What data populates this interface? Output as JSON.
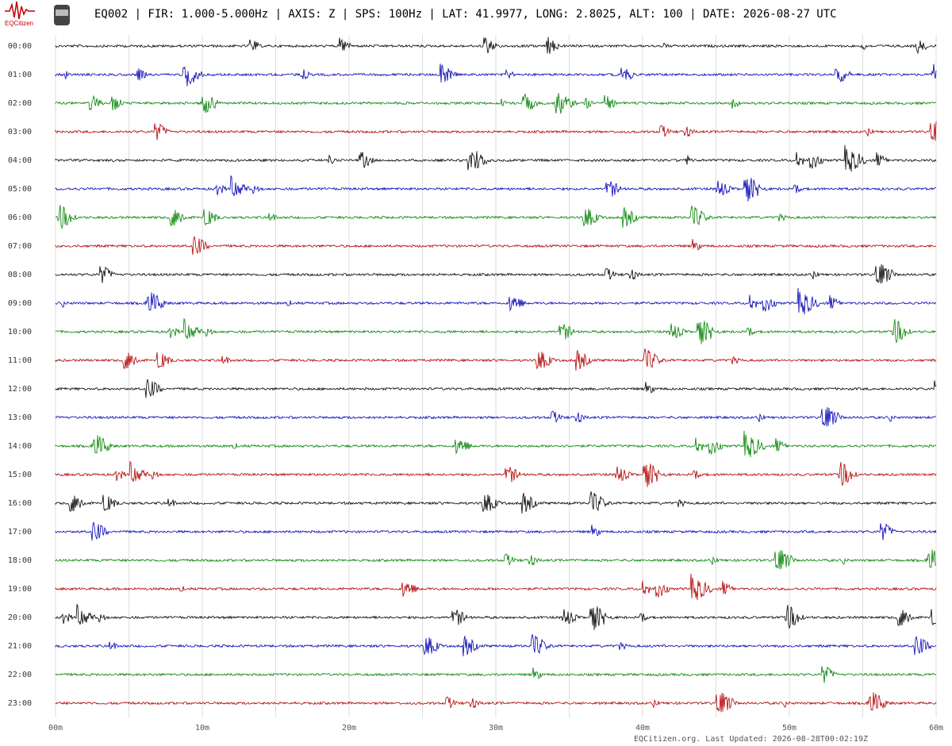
{
  "header": {
    "logo": "EQCitizen",
    "title": "EQ002 | FIR: 1.000-5.000Hz | AXIS: Z | SPS: 100Hz | LAT: 41.9977, LONG: 2.8025, ALT: 100 | DATE: 2026-08-27 UTC"
  },
  "rows": [
    {
      "label": "00:00",
      "color": "#000000"
    },
    {
      "label": "01:00",
      "color": "#0000b4"
    },
    {
      "label": "02:00",
      "color": "#008000"
    },
    {
      "label": "03:00",
      "color": "#b00000"
    },
    {
      "label": "04:00",
      "color": "#000000"
    },
    {
      "label": "05:00",
      "color": "#0000b4"
    },
    {
      "label": "06:00",
      "color": "#008000"
    },
    {
      "label": "07:00",
      "color": "#b00000"
    },
    {
      "label": "08:00",
      "color": "#000000"
    },
    {
      "label": "09:00",
      "color": "#0000b4"
    },
    {
      "label": "10:00",
      "color": "#008000"
    },
    {
      "label": "11:00",
      "color": "#b00000"
    },
    {
      "label": "12:00",
      "color": "#000000"
    },
    {
      "label": "13:00",
      "color": "#0000b4"
    },
    {
      "label": "14:00",
      "color": "#008000"
    },
    {
      "label": "15:00",
      "color": "#b00000"
    },
    {
      "label": "16:00",
      "color": "#000000"
    },
    {
      "label": "17:00",
      "color": "#0000b4"
    },
    {
      "label": "18:00",
      "color": "#008000"
    },
    {
      "label": "19:00",
      "color": "#b00000"
    },
    {
      "label": "20:00",
      "color": "#000000"
    },
    {
      "label": "21:00",
      "color": "#0000b4"
    },
    {
      "label": "22:00",
      "color": "#008000"
    },
    {
      "label": "23:00",
      "color": "#b00000"
    }
  ],
  "x_axis": {
    "ticks": [
      "00m",
      "10m",
      "20m",
      "30m",
      "40m",
      "50m",
      "60m"
    ]
  },
  "footer": "EQCitizen.org. Last Updated: 2026-08-28T00:02:19Z"
}
